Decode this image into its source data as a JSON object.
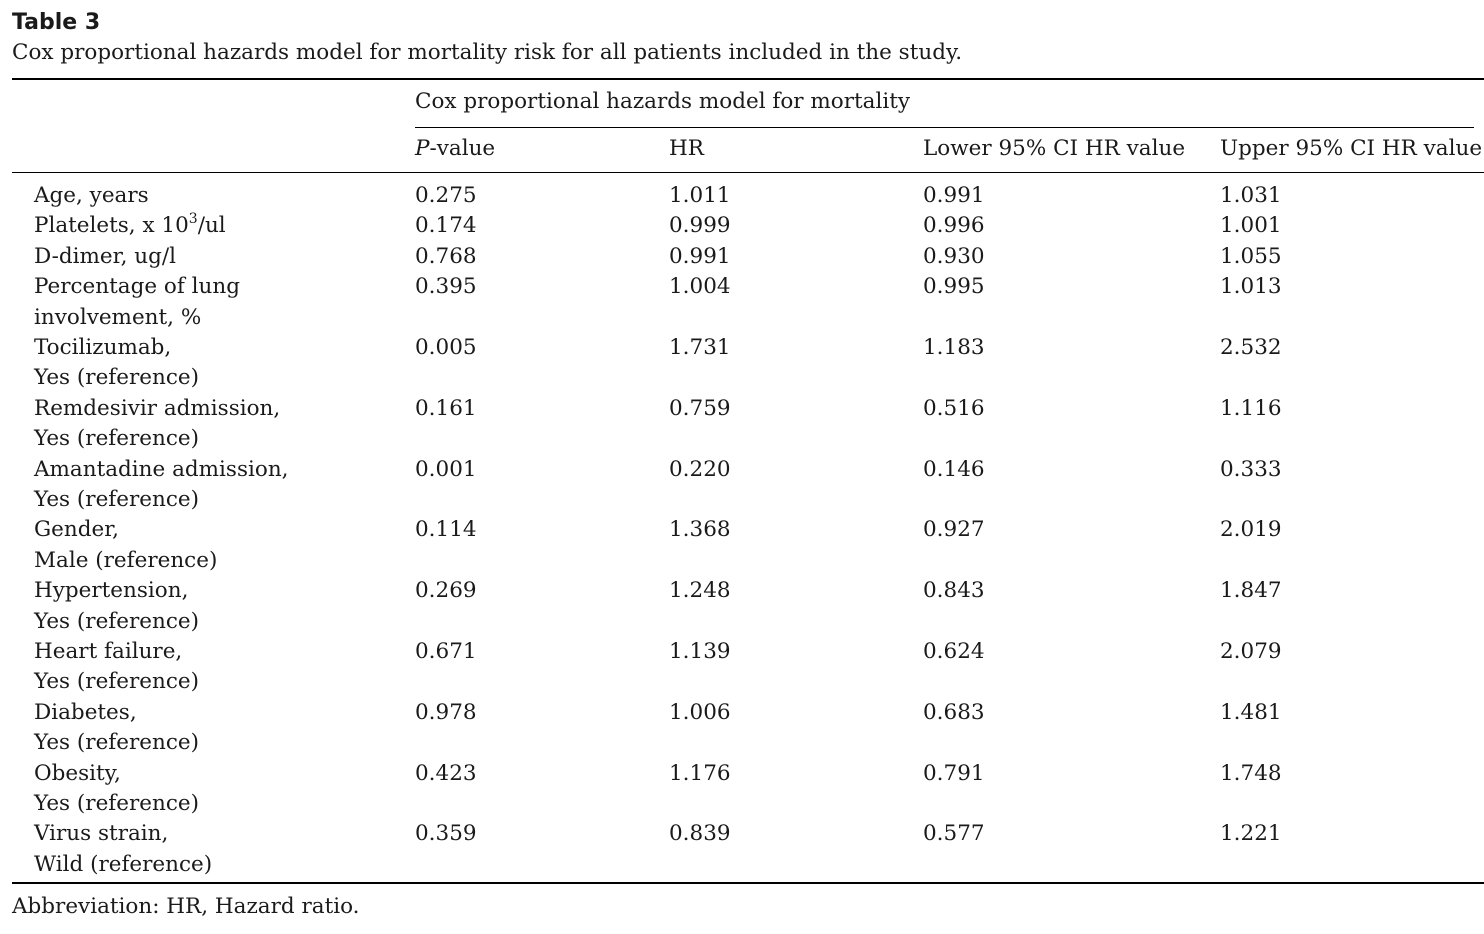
{
  "table_label": "Table 3",
  "caption": "Cox proportional hazards model for mortality risk for all patients included in the study.",
  "group_header": "Cox proportional hazards model for mortality",
  "columns": {
    "p_italic": "P",
    "p_rest": "-value",
    "hr": "HR",
    "lower": "Lower 95% CI HR value",
    "upper": "Upper 95% CI HR value"
  },
  "rows": [
    {
      "line1": "Age, years",
      "line2": "",
      "p": "0.275",
      "hr": "1.011",
      "lower": "0.991",
      "upper": "1.031"
    },
    {
      "line1_pre": "Platelets, x 10",
      "line1_sup": "3",
      "line1_post": "/ul",
      "p": "0.174",
      "hr": "0.999",
      "lower": "0.996",
      "upper": "1.001"
    },
    {
      "line1": "D-dimer, ug/l",
      "line2": "",
      "p": "0.768",
      "hr": "0.991",
      "lower": "0.930",
      "upper": "1.055"
    },
    {
      "line1": "Percentage of lung",
      "line2": "involvement, %",
      "p": "0.395",
      "hr": "1.004",
      "lower": "0.995",
      "upper": "1.013"
    },
    {
      "line1": "Tocilizumab,",
      "line2": "Yes (reference)",
      "p": "0.005",
      "hr": "1.731",
      "lower": "1.183",
      "upper": "2.532"
    },
    {
      "line1": "Remdesivir admission,",
      "line2": "Yes (reference)",
      "p": "0.161",
      "hr": "0.759",
      "lower": "0.516",
      "upper": "1.116"
    },
    {
      "line1": "Amantadine admission,",
      "line2": "Yes (reference)",
      "p": "0.001",
      "hr": "0.220",
      "lower": "0.146",
      "upper": "0.333"
    },
    {
      "line1": "Gender,",
      "line2": "Male (reference)",
      "p": "0.114",
      "hr": "1.368",
      "lower": "0.927",
      "upper": "2.019"
    },
    {
      "line1": "Hypertension,",
      "line2": "Yes (reference)",
      "p": "0.269",
      "hr": "1.248",
      "lower": "0.843",
      "upper": "1.847"
    },
    {
      "line1": "Heart failure,",
      "line2": "Yes (reference)",
      "p": "0.671",
      "hr": "1.139",
      "lower": "0.624",
      "upper": "2.079"
    },
    {
      "line1": "Diabetes,",
      "line2": "Yes (reference)",
      "p": "0.978",
      "hr": "1.006",
      "lower": "0.683",
      "upper": "1.481"
    },
    {
      "line1": "Obesity,",
      "line2": "Yes (reference)",
      "p": "0.423",
      "hr": "1.176",
      "lower": "0.791",
      "upper": "1.748"
    },
    {
      "line1": "Virus strain,",
      "line2": "Wild (reference)",
      "p": "0.359",
      "hr": "0.839",
      "lower": "0.577",
      "upper": "1.221"
    }
  ],
  "footnote": "Abbreviation: HR, Hazard ratio."
}
